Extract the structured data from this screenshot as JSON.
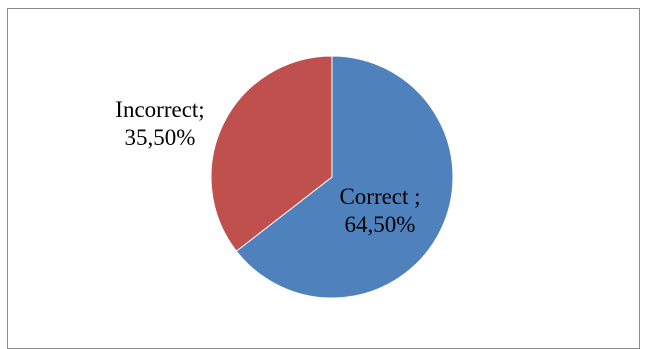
{
  "chart_data": {
    "type": "pie",
    "title": "",
    "legend": "none",
    "slices": [
      {
        "category": "Correct",
        "value": 64.5,
        "label_line1": "Correct ;",
        "label_line2": "64,50%",
        "color": "#4f81bd"
      },
      {
        "category": "Incorrect",
        "value": 35.5,
        "label_line1": "Incorrect;",
        "label_line2": "35,50%",
        "color": "#c0504d"
      }
    ]
  }
}
